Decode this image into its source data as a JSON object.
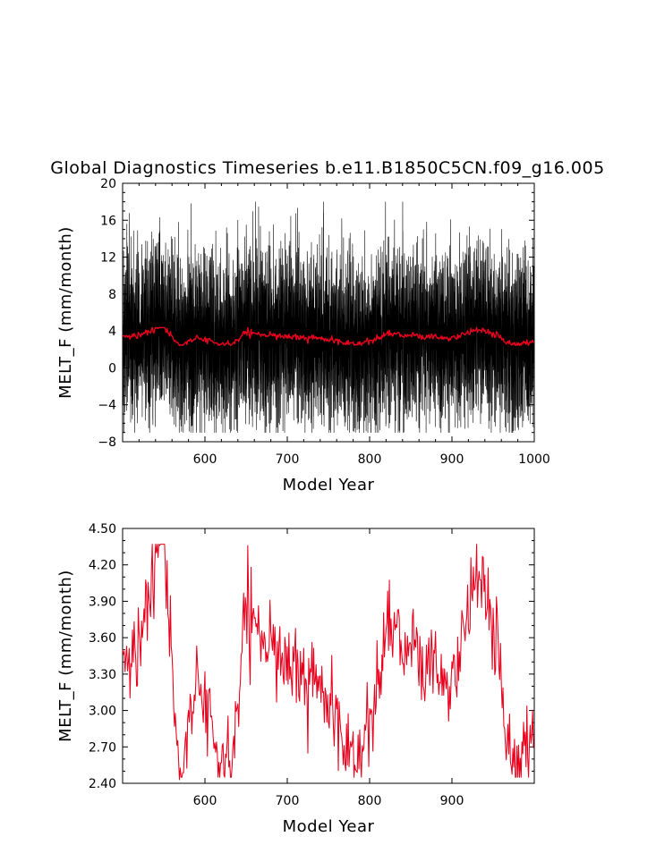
{
  "page": {
    "title": "Global Diagnostics Timeseries b.e11.B1850C5CN.f09_g16.005"
  },
  "chart_data": [
    {
      "type": "line",
      "title": "Global Diagnostics Timeseries b.e11.B1850C5CN.f09_g16.005",
      "xlabel": "Model Year",
      "ylabel": "MELT_F (mm/month)",
      "xlim": [
        500,
        1000
      ],
      "ylim": [
        -8,
        20
      ],
      "x_ticks": [
        600,
        700,
        800,
        900,
        1000
      ],
      "y_ticks": [
        -8,
        -4,
        0,
        4,
        8,
        12,
        16,
        20
      ],
      "x_tick_labels": [
        "600",
        "700",
        "800",
        "900",
        "1000"
      ],
      "y_tick_labels": [
        "−8",
        "−4",
        "0",
        "4",
        "8",
        "12",
        "16",
        "20"
      ],
      "grid": false,
      "series": [
        {
          "color": "#000000",
          "style": "monthly values",
          "x_range": [
            500,
            1000
          ],
          "approx_min": -7,
          "approx_max": 18,
          "typical_band": [
            -5,
            13
          ],
          "notable_peaks": [
            {
              "x": 583,
              "y": 17.8
            },
            {
              "x": 545,
              "y": 16.3
            },
            {
              "x": 640,
              "y": 16.0
            },
            {
              "x": 744,
              "y": 16.8
            }
          ],
          "notable_troughs": [
            {
              "x": 632,
              "y": -6.8
            },
            {
              "x": 787,
              "y": -6.6
            },
            {
              "x": 885,
              "y": -6.5
            }
          ]
        },
        {
          "color": "#e8001c",
          "style": "annual mean",
          "x_range": [
            500,
            1000
          ],
          "approx_mean": 3.35,
          "approx_range": [
            2.5,
            4.3
          ]
        }
      ]
    },
    {
      "type": "line",
      "xlabel": "Model Year",
      "ylabel": "MELT_F (mm/month)",
      "xlim": [
        500,
        1000
      ],
      "ylim": [
        2.4,
        4.5
      ],
      "x_ticks": [
        600,
        700,
        800,
        900
      ],
      "y_ticks": [
        2.4,
        2.7,
        3.0,
        3.3,
        3.6,
        3.9,
        4.2,
        4.5
      ],
      "x_tick_labels": [
        "600",
        "700",
        "800",
        "900"
      ],
      "y_tick_labels": [
        "2.40",
        "2.70",
        "3.00",
        "3.30",
        "3.60",
        "3.90",
        "4.20",
        "4.50"
      ],
      "grid": false,
      "series": [
        {
          "color": "#e8001c",
          "style": "annual mean",
          "x_range": [
            500,
            999
          ],
          "approx_mean": 3.35,
          "notable_points": [
            {
              "x": 545,
              "y": 4.36
            },
            {
              "x": 551,
              "y": 4.37
            },
            {
              "x": 569,
              "y": 2.43
            },
            {
              "x": 623,
              "y": 2.47
            },
            {
              "x": 633,
              "y": 2.54
            },
            {
              "x": 783,
              "y": 2.51
            },
            {
              "x": 937,
              "y": 4.27
            },
            {
              "x": 972,
              "y": 2.54
            }
          ],
          "keypoints": [
            {
              "x": 500,
              "y": 3.3
            },
            {
              "x": 520,
              "y": 3.5
            },
            {
              "x": 545,
              "y": 4.36
            },
            {
              "x": 551,
              "y": 4.37
            },
            {
              "x": 569,
              "y": 2.43
            },
            {
              "x": 590,
              "y": 3.3
            },
            {
              "x": 601,
              "y": 3.14
            },
            {
              "x": 623,
              "y": 2.47
            },
            {
              "x": 633,
              "y": 2.54
            },
            {
              "x": 650,
              "y": 3.85
            },
            {
              "x": 700,
              "y": 3.42
            },
            {
              "x": 750,
              "y": 3.15
            },
            {
              "x": 783,
              "y": 2.51
            },
            {
              "x": 820,
              "y": 3.6
            },
            {
              "x": 850,
              "y": 3.5
            },
            {
              "x": 900,
              "y": 3.2
            },
            {
              "x": 937,
              "y": 4.27
            },
            {
              "x": 972,
              "y": 2.54
            },
            {
              "x": 999,
              "y": 2.83
            }
          ]
        }
      ]
    }
  ]
}
